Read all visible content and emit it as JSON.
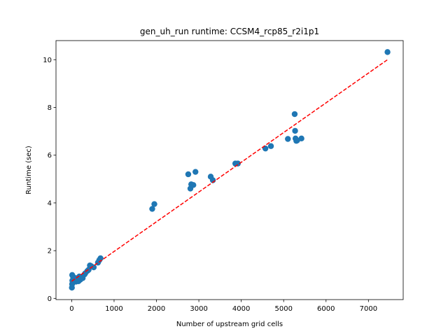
{
  "chart_data": {
    "type": "scatter",
    "title": "gen_uh_run runtime: CCSM4_rcp85_r2i1p1",
    "xlabel": "Number of upstream grid cells",
    "ylabel": "Runtime (sec)",
    "xlim": [
      -370,
      7820
    ],
    "ylim": [
      -0.05,
      10.8
    ],
    "x_ticks": [
      0,
      1000,
      2000,
      3000,
      4000,
      5000,
      6000,
      7000
    ],
    "y_ticks": [
      0,
      2,
      4,
      6,
      8,
      10
    ],
    "grid": false,
    "legend": "none",
    "colors": {
      "points": "#1f77b4",
      "fit": "#ff0000"
    },
    "series": [
      {
        "kind": "points",
        "x": [
          5,
          10,
          12,
          15,
          30,
          40,
          60,
          80,
          90,
          100,
          120,
          130,
          150,
          160,
          180,
          200,
          210,
          230,
          260,
          300,
          320,
          370,
          400,
          430,
          460,
          520,
          620,
          650,
          680,
          1900,
          1950,
          2750,
          2800,
          2820,
          2870,
          2920,
          3280,
          3330,
          3860,
          3920,
          4570,
          4700,
          5100,
          5260,
          5270,
          5280,
          5300,
          5320,
          5420,
          7450
        ],
        "y": [
          0.45,
          0.6,
          0.98,
          0.75,
          0.92,
          0.7,
          0.78,
          0.72,
          0.85,
          0.7,
          0.8,
          0.75,
          0.85,
          0.72,
          0.92,
          0.78,
          0.88,
          0.9,
          0.85,
          1.0,
          1.05,
          1.15,
          1.2,
          1.38,
          1.35,
          1.3,
          1.5,
          1.6,
          1.68,
          3.75,
          3.95,
          5.2,
          4.6,
          4.78,
          4.75,
          5.3,
          5.1,
          4.95,
          5.65,
          5.65,
          6.28,
          6.38,
          6.68,
          7.72,
          7.02,
          6.7,
          6.6,
          6.62,
          6.7,
          10.32
        ]
      },
      {
        "kind": "fit",
        "style": "dashed",
        "x": [
          0,
          7450
        ],
        "y": [
          0.72,
          10.0
        ]
      }
    ]
  }
}
